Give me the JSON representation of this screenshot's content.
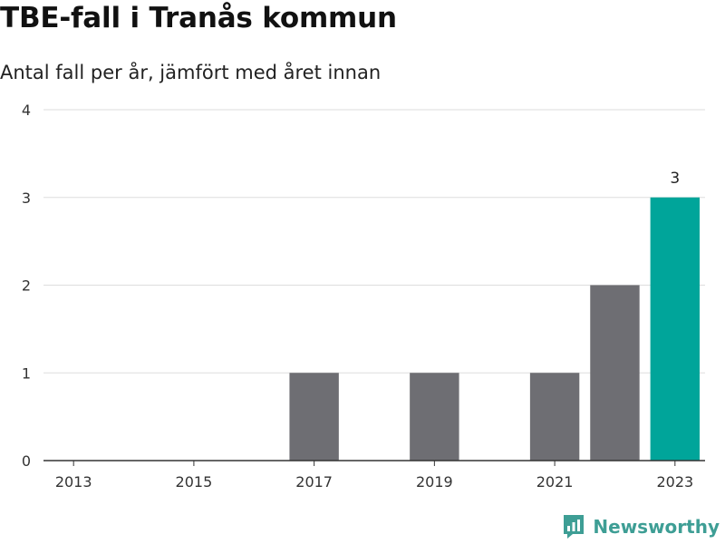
{
  "header": {
    "title": "TBE-fall i Tranås kommun",
    "subtitle": "Antal fall per år, jämfört med året innan"
  },
  "brand": {
    "name": "Newsworthy",
    "icon": "newsworthy-logo-icon",
    "color": "#3e9e95"
  },
  "colors": {
    "bar": "#6e6e73",
    "highlight": "#00a59a",
    "grid": "#dddddd",
    "axis": "#333333"
  },
  "chart_data": {
    "type": "bar",
    "categories": [
      "2013",
      "2014",
      "2015",
      "2016",
      "2017",
      "2018",
      "2019",
      "2020",
      "2021",
      "2022",
      "2023"
    ],
    "values": [
      0,
      0,
      0,
      0,
      1,
      0,
      1,
      0,
      1,
      2,
      3
    ],
    "x_tick_labels": [
      "2013",
      "2015",
      "2017",
      "2019",
      "2021",
      "2023"
    ],
    "y_ticks": [
      0,
      1,
      2,
      3,
      4
    ],
    "ylim": [
      0,
      4
    ],
    "highlight_category": "2023",
    "data_labels": [
      {
        "category": "2023",
        "text": "3"
      }
    ],
    "grid": true,
    "xlabel": "",
    "ylabel": ""
  }
}
